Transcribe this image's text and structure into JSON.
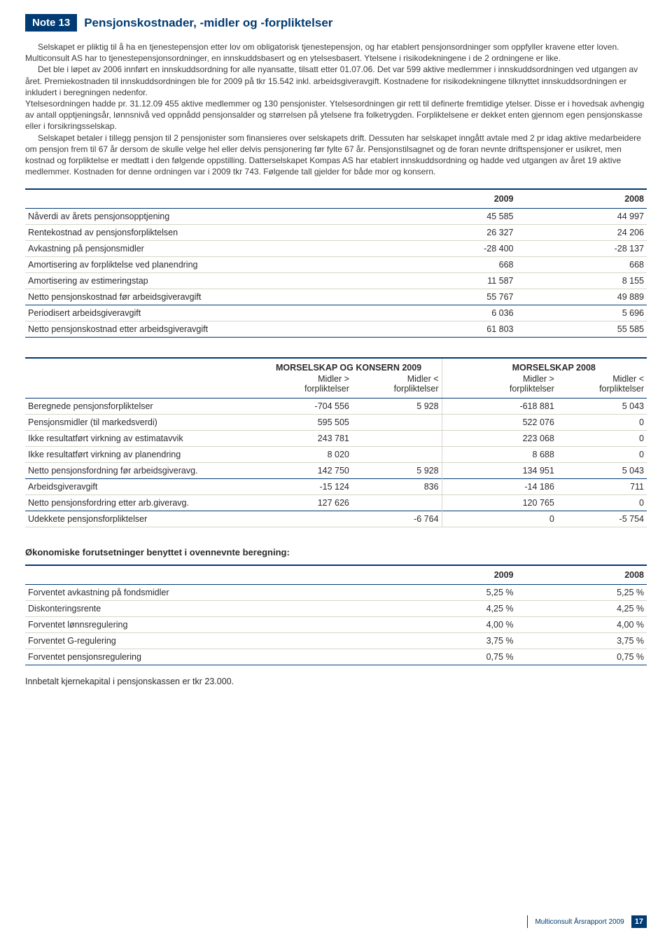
{
  "note": {
    "badge": "Note 13",
    "title": "Pensjonskostnader, -midler og -forpliktelser"
  },
  "paragraphs": [
    "Selskapet er pliktig til å ha en tjenestepensjon etter lov om obligatorisk tjenestepensjon, og har etablert pensjonsordninger som oppfyller kravene etter loven. Multiconsult AS har to tjenestepensjonsordninger, en innskuddsbasert og en ytelsesbasert. Ytelsene i risikodekningene i de 2 ordningene er like.",
    "Det ble i løpet av 2006 innført en innskuddsordning for alle nyansatte, tilsatt etter 01.07.06. Det var 599 aktive medlemmer i innskuddsordningen ved utgangen av året. Premiekostnaden til innskuddsordningen ble for 2009  på tkr 15.542 inkl. arbeidsgiveravgift. Kostnadene for risikodekningene tilknyttet innskuddsordningen er inkludert i beregningen nedenfor.",
    "Ytelsesordningen hadde pr. 31.12.09  455 aktive medlemmer og 130 pensjonister. Ytelsesordningen gir rett til definerte fremtidige ytelser. Disse er i hovedsak avhengig av antall opptjeningsår, lønnsnivå ved oppnådd pensjonsalder og størrelsen på ytelsene fra folketrygden. Forpliktelsene er dekket enten gjennom egen pensjonskasse eller i forsikringsselskap.",
    "Selskapet betaler i tillegg pensjon til 2 pensjonister som finansieres over selskapets drift. Dessuten har selskapet inngått avtale med 2 pr idag aktive medarbeidere om pensjon frem til 67 år dersom de skulle velge hel eller delvis pensjonering før fylte 67 år. Pensjonstilsagnet og de foran nevnte driftspensjoner er usikret, men kostnad og forpliktelse er medtatt i den følgende oppstilling. Datterselskapet Kompas AS har etablert innskuddsordning og hadde ved utgangen av året 19 aktive medlemmer. Kostnaden for denne ordningen var i 2009 tkr 743. Følgende tall gjelder for både mor og konsern."
  ],
  "table1": {
    "headers": [
      "",
      "2009",
      "2008"
    ],
    "rows": [
      {
        "label": "Nåverdi av årets pensjonsopptjening",
        "c1": "45 585",
        "c2": "44 997"
      },
      {
        "label": "Rentekostnad av pensjonsforpliktelsen",
        "c1": "26 327",
        "c2": "24 206"
      },
      {
        "label": "Avkastning på pensjonsmidler",
        "c1": "-28 400",
        "c2": "-28 137"
      },
      {
        "label": "Amortisering av forpliktelse ved planendring",
        "c1": "668",
        "c2": "668"
      },
      {
        "label": "Amortisering av estimeringstap",
        "c1": "11 587",
        "c2": "8 155"
      },
      {
        "label": "Netto pensjonskostnad før arbeidsgiveravgift",
        "c1": "55 767",
        "c2": "49 889",
        "heavy": true
      },
      {
        "label": "Periodisert arbeidsgiveravgift",
        "c1": "6 036",
        "c2": "5 696"
      },
      {
        "label": "Netto pensjonskostnad etter arbeidsgiveravgift",
        "c1": "61 803",
        "c2": "55 585",
        "heavy": true
      }
    ]
  },
  "table2": {
    "group1": "MORSELSKAP OG KONSERN 2009",
    "group2": "MORSELSKAP 2008",
    "sub": [
      "",
      "Midler > forpliktelser",
      "Midler < forpliktelser",
      "Midler > forpliktelser",
      "Midler < forpliktelser"
    ],
    "rows": [
      {
        "label": "Beregnede pensjonsforpliktelser",
        "a": "-704 556",
        "b": "5 928",
        "c": "-618 881",
        "d": "5 043"
      },
      {
        "label": "Pensjonsmidler (til markedsverdi)",
        "a": "595 505",
        "b": "",
        "c": "522 076",
        "d": "0"
      },
      {
        "label": "Ikke resultatført virkning av estimatavvik",
        "a": "243 781",
        "b": "",
        "c": "223 068",
        "d": "0"
      },
      {
        "label": "Ikke resultatført virkning av planendring",
        "a": "8 020",
        "b": "",
        "c": "8 688",
        "d": "0"
      },
      {
        "label": "Netto pensjonsfordning før arbeidsgiveravg.",
        "a": "142 750",
        "b": "5 928",
        "c": "134 951",
        "d": "5 043",
        "heavy": true
      },
      {
        "label": "Arbeidsgiveravgift",
        "a": "-15 124",
        "b": "836",
        "c": "-14 186",
        "d": "711"
      },
      {
        "label": "Netto pensjonsfordring etter arb.giveravg.",
        "a": "127 626",
        "b": "",
        "c": "120 765",
        "d": "0",
        "heavy": true
      },
      {
        "label": "Udekkete pensjonsforpliktelser",
        "a": "",
        "b": "-6 764",
        "c": "0",
        "d": "-5 754"
      }
    ]
  },
  "assumptionsTitle": "Økonomiske forutsetninger benyttet i ovennevnte beregning:",
  "table3": {
    "headers": [
      "",
      "2009",
      "2008"
    ],
    "rows": [
      {
        "label": "Forventet avkastning på fondsmidler",
        "c1": "5,25 %",
        "c2": "5,25 %"
      },
      {
        "label": "Diskonteringsrente",
        "c1": "4,25 %",
        "c2": "4,25 %"
      },
      {
        "label": "Forventet lønnsregulering",
        "c1": "4,00 %",
        "c2": "4,00 %"
      },
      {
        "label": "Forventet G-regulering",
        "c1": "3,75 %",
        "c2": "3,75 %"
      },
      {
        "label": "Forventet pensjonsregulering",
        "c1": "0,75 %",
        "c2": "0,75 %"
      }
    ]
  },
  "footerNote": "Innbetalt kjernekapital i pensjonskassen er tkr 23.000.",
  "pageFooter": {
    "text": "Multiconsult Årsrapport 2009",
    "num": "17"
  }
}
